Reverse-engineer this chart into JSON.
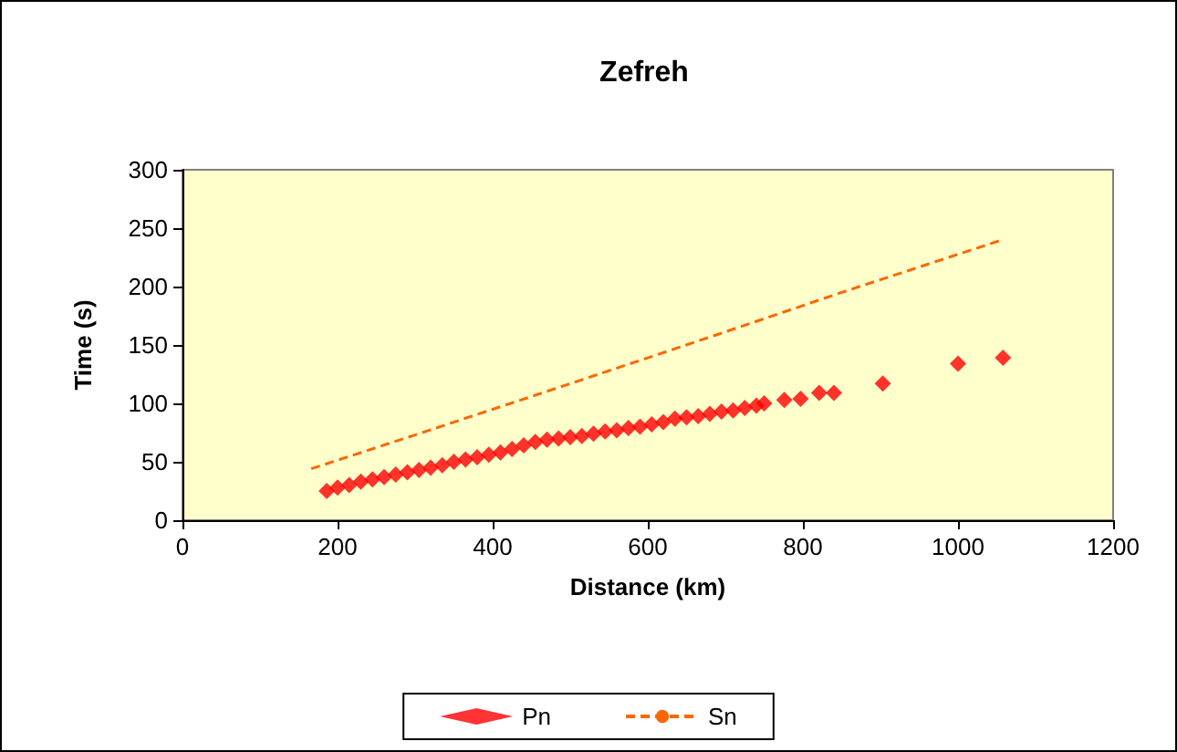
{
  "chart_data": {
    "type": "scatter",
    "title": "Zefreh",
    "xlabel": "Distance (km)",
    "ylabel": "Time (s)",
    "xlim": [
      0,
      1200
    ],
    "xticks": [
      0,
      200,
      400,
      600,
      800,
      1000,
      1200
    ],
    "ylim": [
      0,
      300
    ],
    "yticks": [
      0,
      50,
      100,
      150,
      200,
      250,
      300
    ],
    "grid": false,
    "legend": "bottom",
    "series": [
      {
        "name": "Pn",
        "marker": "diamond",
        "color": "#ff0000",
        "x": [
          186,
          200,
          215,
          230,
          245,
          260,
          275,
          290,
          305,
          320,
          335,
          350,
          365,
          380,
          395,
          410,
          425,
          440,
          455,
          470,
          485,
          500,
          515,
          530,
          545,
          560,
          575,
          590,
          605,
          620,
          635,
          650,
          665,
          680,
          695,
          710,
          725,
          740,
          750,
          776,
          797,
          821,
          840,
          903,
          1000,
          1058
        ],
        "values": [
          25,
          28,
          30,
          33,
          35,
          37,
          39,
          41,
          43,
          45,
          47,
          50,
          52,
          54,
          56,
          58,
          61,
          64,
          67,
          69,
          70,
          71,
          72,
          74,
          76,
          77,
          79,
          80,
          82,
          84,
          87,
          88,
          89,
          91,
          93,
          94,
          96,
          98,
          100,
          103,
          104,
          109,
          109,
          117,
          134,
          139
        ]
      },
      {
        "name": "Sn",
        "type": "line",
        "marker": "none",
        "line_style": "dashed",
        "color": "#ff6600",
        "x": [
          166,
          300,
          455,
          600,
          690,
          850,
          1057
        ],
        "values": [
          44,
          73,
          107,
          139,
          159,
          195,
          240
        ]
      }
    ]
  }
}
